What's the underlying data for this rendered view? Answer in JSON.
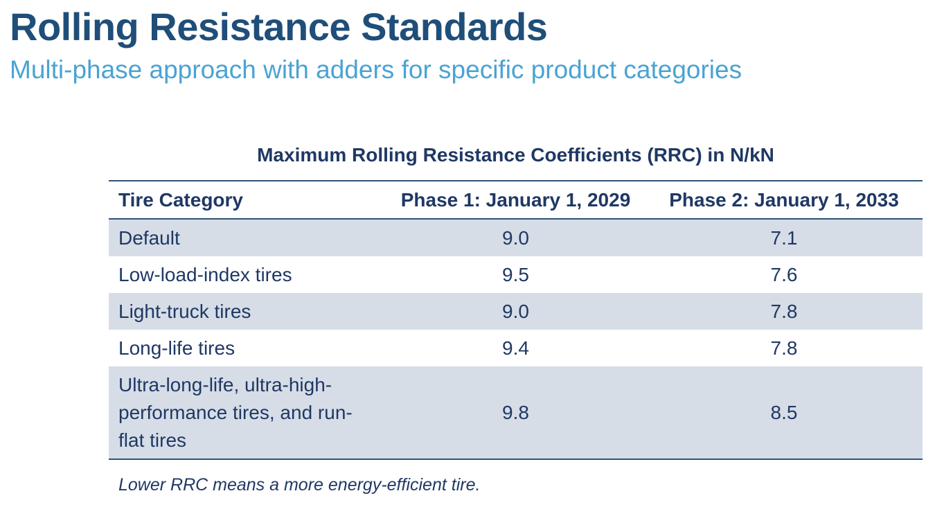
{
  "slide": {
    "title": "Rolling Resistance Standards",
    "subtitle": "Multi-phase approach with adders for specific product categories"
  },
  "table": {
    "caption": "Maximum Rolling Resistance Coefficients (RRC) in N/kN",
    "headers": [
      "Tire Category",
      "Phase 1: January 1, 2029",
      "Phase 2: January 1, 2033"
    ],
    "rows": [
      {
        "category": "Default",
        "phase1": "9.0",
        "phase2": "7.1"
      },
      {
        "category": "Low-load-index tires",
        "phase1": "9.5",
        "phase2": "7.6"
      },
      {
        "category": "Light-truck tires",
        "phase1": "9.0",
        "phase2": "7.8"
      },
      {
        "category": "Long-life tires",
        "phase1": "9.4",
        "phase2": "7.8"
      },
      {
        "category": "Ultra-long-life, ultra-high-performance tires, and run-flat tires",
        "phase1": "9.8",
        "phase2": "8.5"
      }
    ],
    "footnote": "Lower RRC means a more energy-efficient tire."
  },
  "colors": {
    "title": "#1f4e79",
    "subtitle": "#4aa3d3",
    "table_text": "#1f3864",
    "row_shade": "#d6dde7",
    "rule": "#2e5377"
  }
}
